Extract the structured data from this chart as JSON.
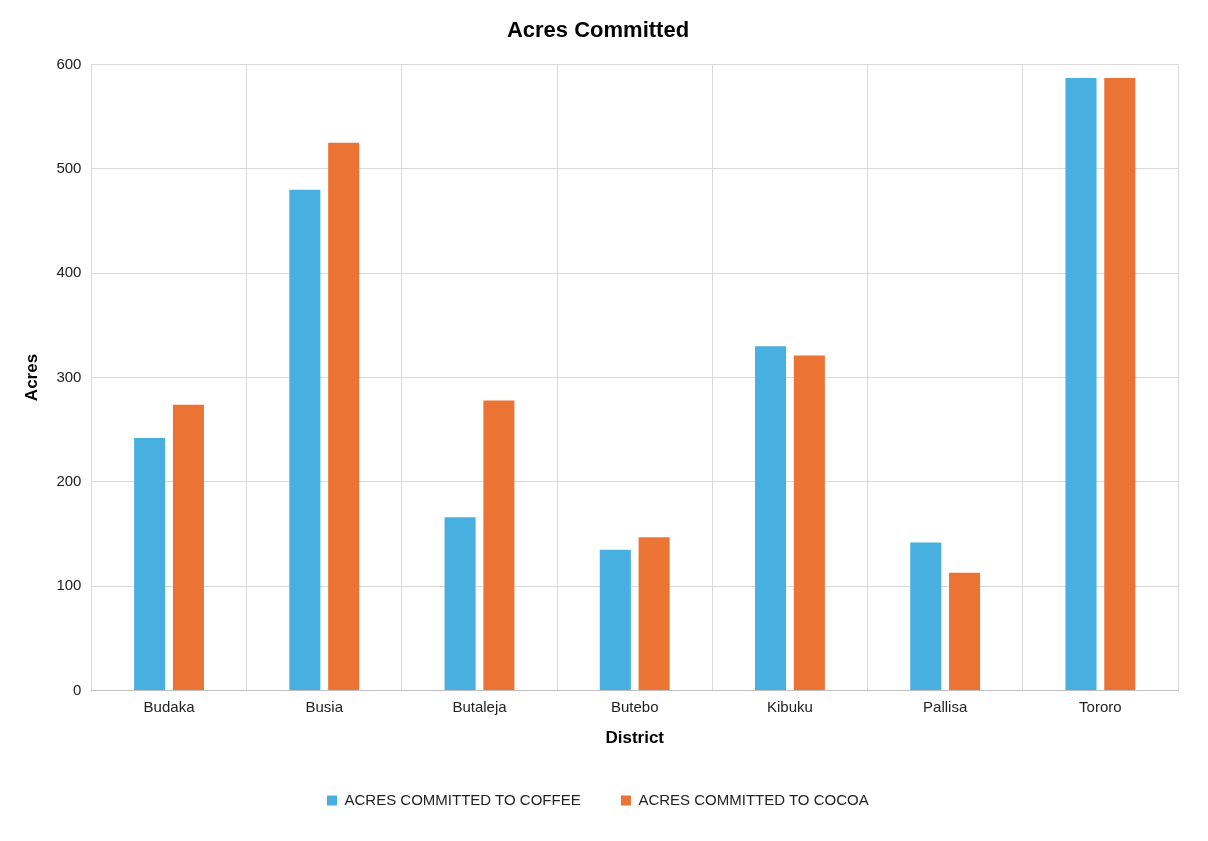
{
  "chart_data": {
    "type": "bar",
    "title": "Acres Committed",
    "xlabel": "District",
    "ylabel": "Acres",
    "categories": [
      "Budaka",
      "Busia",
      "Butaleja",
      "Butebo",
      "Kibuku",
      "Pallisa",
      "Tororo"
    ],
    "series": [
      {
        "name": "ACRES COMMITTED TO COFFEE",
        "color": "#47b0e0",
        "values": [
          242,
          480,
          166,
          135,
          330,
          142,
          587
        ]
      },
      {
        "name": "ACRES COMMITTED TO COCOA",
        "color": "#eb7334",
        "values": [
          274,
          525,
          278,
          147,
          321,
          113,
          587
        ]
      }
    ],
    "ylim": [
      0,
      600
    ],
    "yticks": [
      0,
      100,
      200,
      300,
      400,
      500,
      600
    ],
    "grid": true,
    "legend": "bottom"
  }
}
